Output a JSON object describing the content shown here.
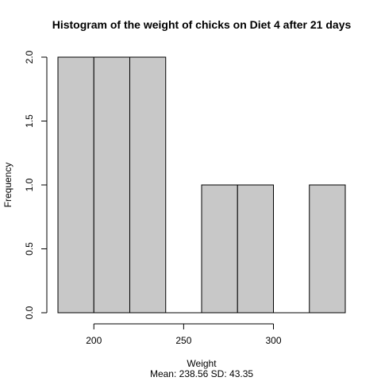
{
  "chart_data": {
    "type": "bar",
    "title": "Histogram of the weight of chicks on Diet 4 after 21 days",
    "xlabel": "Weight",
    "subtitle": "Mean: 238.56 SD: 43.35",
    "ylabel": "Frequency",
    "bins": [
      {
        "x0": 180,
        "x1": 200,
        "count": 2
      },
      {
        "x0": 200,
        "x1": 220,
        "count": 2
      },
      {
        "x0": 220,
        "x1": 240,
        "count": 2
      },
      {
        "x0": 240,
        "x1": 260,
        "count": 0
      },
      {
        "x0": 260,
        "x1": 280,
        "count": 1
      },
      {
        "x0": 280,
        "x1": 300,
        "count": 1
      },
      {
        "x0": 300,
        "x1": 320,
        "count": 0
      },
      {
        "x0": 320,
        "x1": 340,
        "count": 1
      }
    ],
    "x_ticks": [
      200,
      250,
      300
    ],
    "x_tick_labels": [
      "200",
      "250",
      "300"
    ],
    "y_ticks": [
      0,
      0.5,
      1,
      1.5,
      2
    ],
    "y_tick_labels": [
      "0.0",
      "0.5",
      "1.0",
      "1.5",
      "2.0"
    ],
    "xlim": [
      180,
      340
    ],
    "ylim": [
      0,
      2
    ],
    "bar_color": "#c8c8c8",
    "bar_border_color": "#000000",
    "grid": false,
    "legend": "none"
  }
}
